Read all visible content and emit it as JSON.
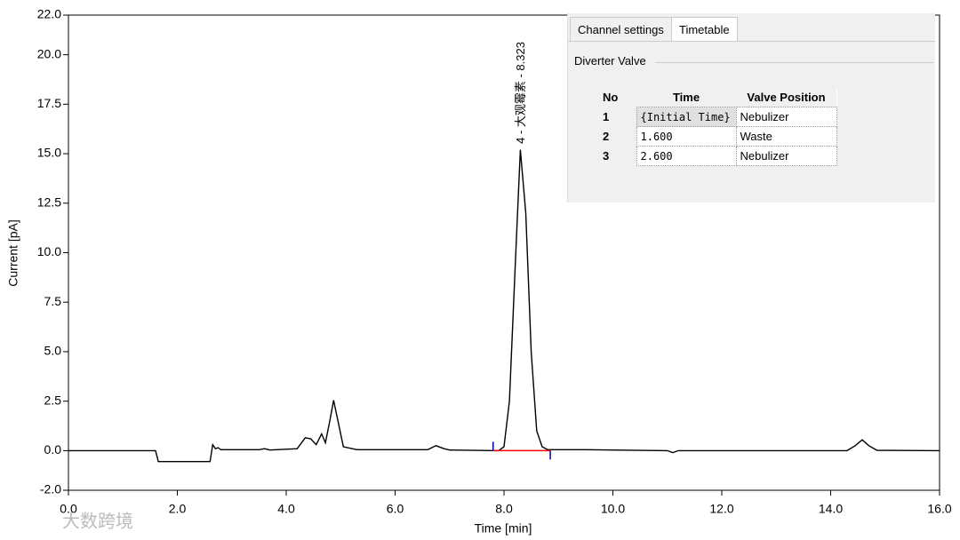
{
  "chart_data": {
    "type": "line",
    "xlabel": "Time [min]",
    "ylabel": "Current [pA]",
    "xlim": [
      0,
      16
    ],
    "ylim": [
      -2,
      22
    ],
    "xticks": [
      {
        "value": 0,
        "label": "0.0"
      },
      {
        "value": 2,
        "label": "2.0"
      },
      {
        "value": 4,
        "label": "4.0"
      },
      {
        "value": 6,
        "label": "6.0"
      },
      {
        "value": 8,
        "label": "8.0"
      },
      {
        "value": 10,
        "label": "10.0"
      },
      {
        "value": 12,
        "label": "12.0"
      },
      {
        "value": 14,
        "label": "14.0"
      },
      {
        "value": 16,
        "label": "16.0"
      }
    ],
    "yticks": [
      {
        "value": -2,
        "label": "-2.0"
      },
      {
        "value": 0,
        "label": "0.0"
      },
      {
        "value": 2.5,
        "label": "2.5"
      },
      {
        "value": 5,
        "label": "5.0"
      },
      {
        "value": 7.5,
        "label": "7.5"
      },
      {
        "value": 10,
        "label": "10.0"
      },
      {
        "value": 12.5,
        "label": "12.5"
      },
      {
        "value": 15,
        "label": "15.0"
      },
      {
        "value": 17.5,
        "label": "17.5"
      },
      {
        "value": 20,
        "label": "20.0"
      },
      {
        "value": 22,
        "label": "22.0"
      }
    ],
    "color": "#000000",
    "x": [
      0,
      1.6,
      1.65,
      2.6,
      2.65,
      2.7,
      2.75,
      2.8,
      3.5,
      3.6,
      3.7,
      4.2,
      4.35,
      4.45,
      4.55,
      4.65,
      4.72,
      4.8,
      4.87,
      4.95,
      5.05,
      5.3,
      6.6,
      6.75,
      6.9,
      7.0,
      7.9,
      8.0,
      8.1,
      8.2,
      8.3,
      8.4,
      8.5,
      8.6,
      8.7,
      8.8,
      9.5,
      11.0,
      11.1,
      11.2,
      12.0,
      14.3,
      14.45,
      14.58,
      14.7,
      14.85,
      16.0
    ],
    "values": [
      0,
      0,
      -0.55,
      -0.55,
      0.3,
      0.1,
      0.15,
      0.05,
      0.05,
      0.1,
      0.03,
      0.1,
      0.65,
      0.6,
      0.3,
      0.85,
      0.4,
      1.5,
      2.55,
      1.5,
      0.2,
      0.05,
      0.05,
      0.25,
      0.1,
      0.03,
      0,
      0.2,
      2.5,
      9,
      15.2,
      12,
      5,
      1,
      0.2,
      0.05,
      0.05,
      0,
      -0.1,
      0,
      0,
      0,
      0.25,
      0.55,
      0.25,
      0.02,
      0
    ],
    "baseline": {
      "x": [
        7.8,
        8.85
      ],
      "values": [
        0,
        0
      ],
      "color": "#ff0000"
    },
    "annotations": [
      {
        "text": "4 - 大观霉素 - 8.323",
        "x": 8.323,
        "y": 15.5
      }
    ]
  },
  "panel": {
    "tabs": [
      "Channel settings",
      "Timetable"
    ],
    "group": "Diverter Valve",
    "table": {
      "header": [
        "No",
        "Time",
        "Valve Position"
      ],
      "rows": [
        [
          "1",
          "{Initial Time}",
          "Nebulizer"
        ],
        [
          "2",
          "1.600",
          "Waste"
        ],
        [
          "3",
          "2.600",
          "Nebulizer"
        ]
      ]
    }
  },
  "watermark": "大数跨境"
}
